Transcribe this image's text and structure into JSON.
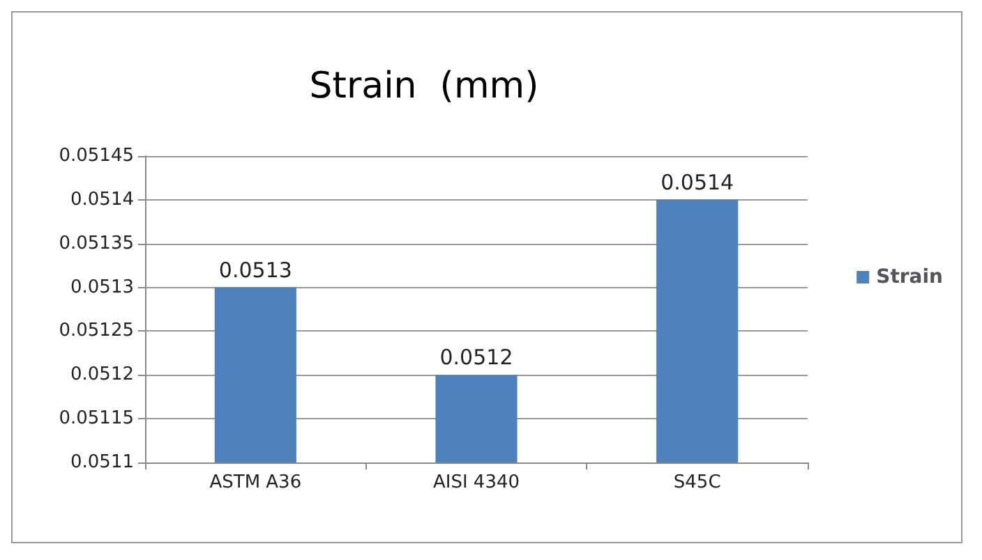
{
  "chart_data": {
    "type": "bar",
    "title": "Strain  (mm)",
    "categories": [
      "ASTM A36",
      "AISI 4340",
      "S45C"
    ],
    "series": [
      {
        "name": "Strain",
        "color": "#4f81bd",
        "values": [
          0.0513,
          0.0512,
          0.0514
        ]
      }
    ],
    "ylim": [
      0.0511,
      0.05145
    ],
    "yticks": [
      0.0511,
      0.05115,
      0.0512,
      0.05125,
      0.0513,
      0.05135,
      0.0514,
      0.05145
    ],
    "grid": "y",
    "legend": "right",
    "data_labels": true
  }
}
